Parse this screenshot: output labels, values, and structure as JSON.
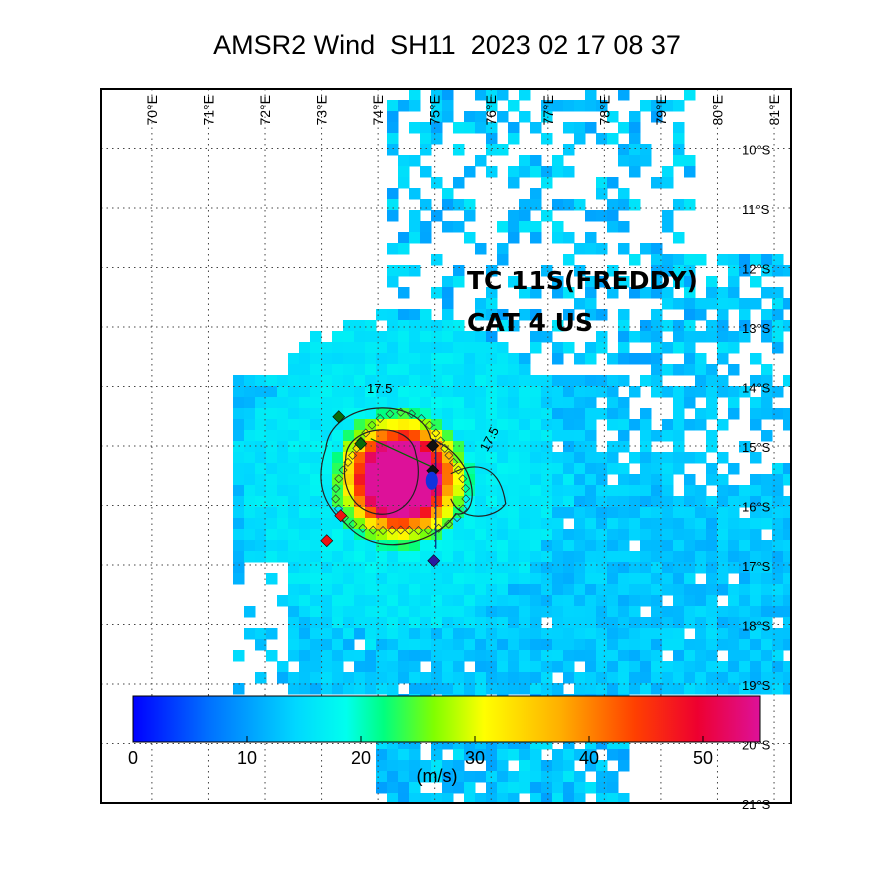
{
  "title": "AMSR2 Wind  SH11  2023 02 17 08 37",
  "storm": {
    "name_line": "TC 11S(FREDDY)",
    "intensity_line": "CAT 4 US"
  },
  "map": {
    "lon_ticks": [
      "70°E",
      "71°E",
      "72°E",
      "73°E",
      "74°E",
      "75°E",
      "76°E",
      "77°E",
      "78°E",
      "79°E",
      "80°E",
      "81°E"
    ],
    "lat_ticks": [
      "10°S",
      "11°S",
      "12°S",
      "13°S",
      "14°S",
      "15°S",
      "16°S",
      "17°S",
      "18°S",
      "19°S",
      "20°S",
      "21°S"
    ],
    "lon_range": [
      69.1,
      81.3
    ],
    "lat_range": [
      -9.0,
      -21.0
    ],
    "grid": "dotted",
    "contour_label": "17.5",
    "contour_level_ms": 17.5,
    "storm_center": {
      "lon": 74.4,
      "lat": -15.55
    }
  },
  "colorbar": {
    "ticks": [
      "0",
      "10",
      "20",
      "30",
      "40",
      "50"
    ],
    "range": [
      0,
      55
    ],
    "units_label": "(m/s)",
    "colors": [
      "#0000ff",
      "#0088ff",
      "#00e5ff",
      "#00ff66",
      "#88ff00",
      "#ffff00",
      "#ffaa00",
      "#ff3300",
      "#ee0044",
      "#dd1199"
    ]
  }
}
